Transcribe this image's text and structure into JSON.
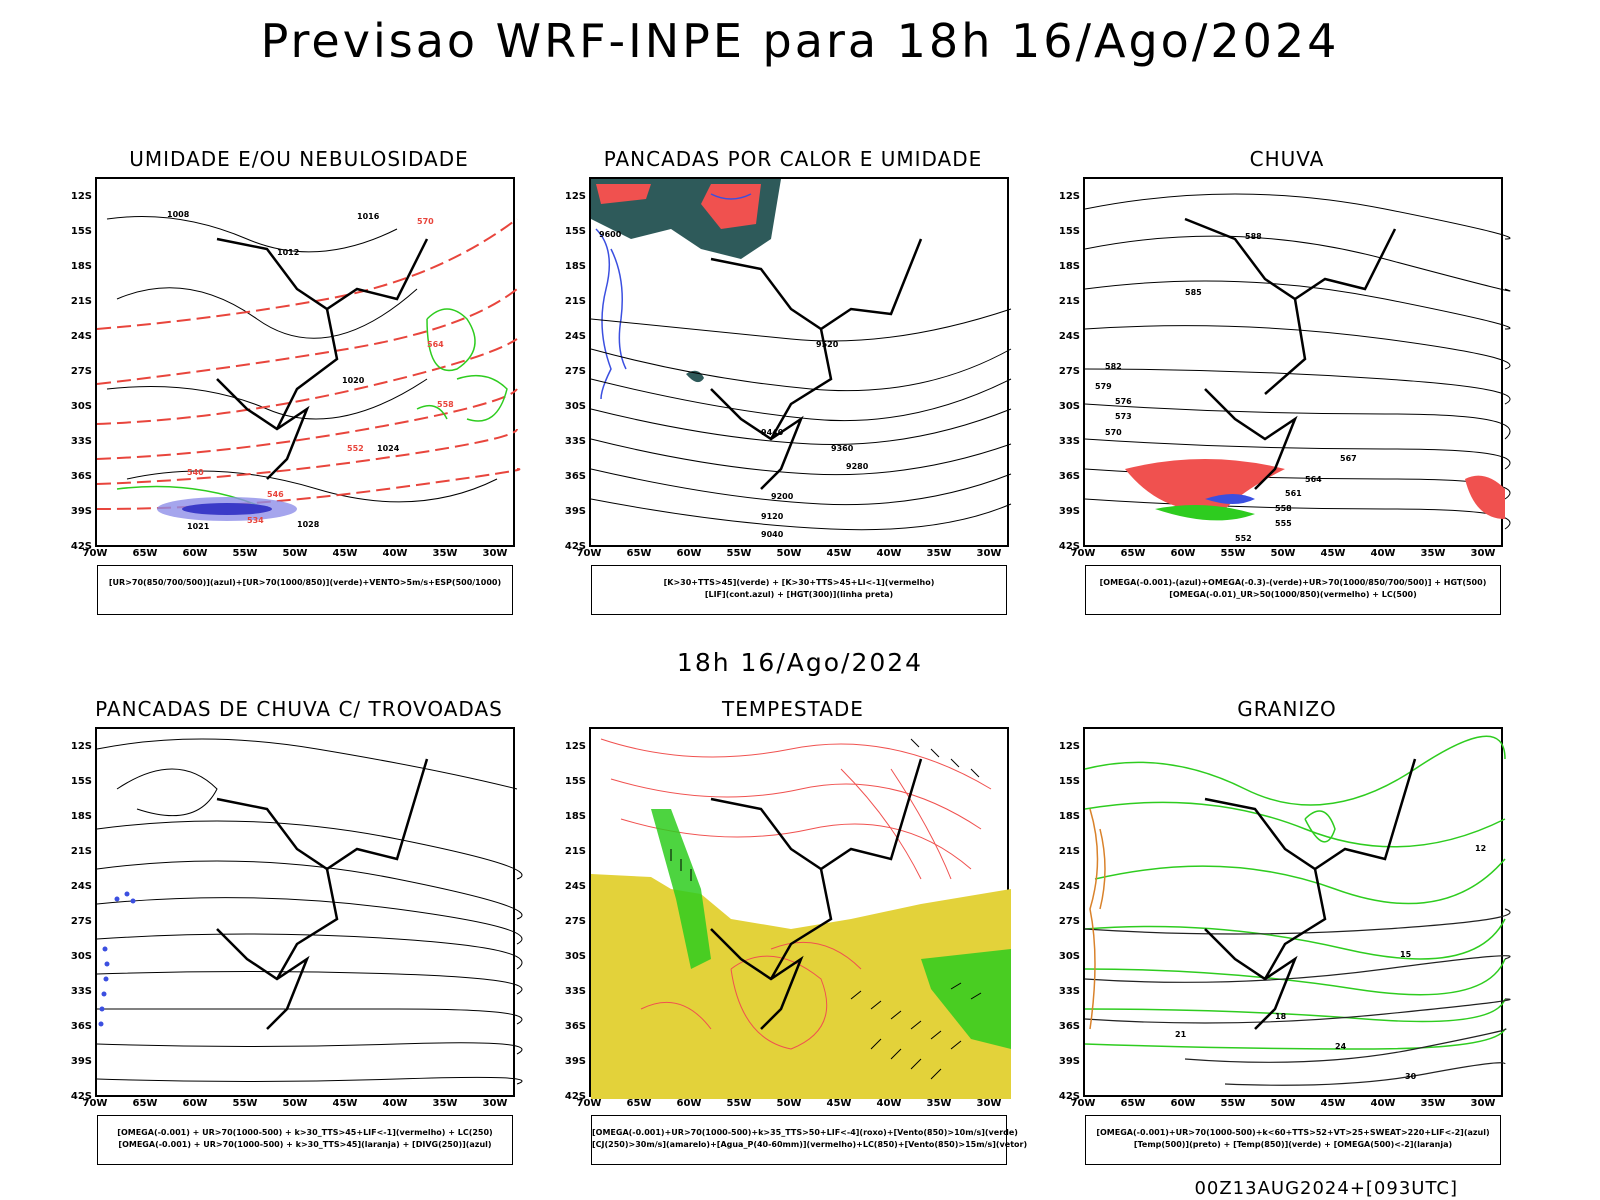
{
  "title": "Previsao WRF-INPE  para 18h 16/Ago/2024",
  "subtitle": "18h 16/Ago/2024",
  "footer": "00Z13AUG2024+[093UTC]",
  "lat_labels": [
    "12S",
    "15S",
    "18S",
    "21S",
    "24S",
    "27S",
    "30S",
    "33S",
    "36S",
    "39S",
    "42S"
  ],
  "lon_labels": [
    "70W",
    "65W",
    "60W",
    "55W",
    "50W",
    "45W",
    "40W",
    "35W",
    "30W"
  ],
  "panels": [
    {
      "title": "UMIDADE E/OU NEBULOSIDADE",
      "legend": [
        "[UR>70(850/700/500)](azul)+[UR>70(1000/850)](verde)+VENTO>5m/s+ESP(500/1000)"
      ],
      "contour_labels": [
        "1008",
        "1016",
        "1012",
        "1020",
        "1024",
        "1028",
        "570",
        "564",
        "558",
        "552",
        "546",
        "540",
        "534",
        "1021"
      ]
    },
    {
      "title": "PANCADAS POR CALOR E UMIDADE",
      "legend": [
        "[K>30+TTS>45](verde) + [K>30+TTS>45+LI<-1](vermelho)",
        "[LIF](cont.azul) + [HGT(300)](linha preta)"
      ],
      "contour_labels": [
        "9600",
        "9520",
        "9440",
        "9360",
        "9280",
        "9200",
        "9120",
        "9040"
      ]
    },
    {
      "title": "CHUVA",
      "legend": [
        "[OMEGA(-0.001)-(azul)+OMEGA(-0.3)-(verde)+UR>70(1000/850/700/500)] + HGT(500)",
        "[OMEGA(-0.01)_UR>50(1000/850)(vermelho) + LC(500)"
      ],
      "contour_labels": [
        "588",
        "585",
        "582",
        "579",
        "576",
        "573",
        "570",
        "567",
        "564",
        "561",
        "558",
        "555",
        "552"
      ]
    },
    {
      "title": "PANCADAS DE CHUVA C/ TROVOADAS",
      "legend": [
        "[OMEGA(-0.001) + UR>70(1000-500) + k>30_TTS>45+LIF<-1](vermelho) + LC(250)",
        "[OMEGA(-0.001) + UR>70(1000-500) + k>30_TTS>45](laranja) + [DIVG(250)](azul)"
      ],
      "contour_labels": []
    },
    {
      "title": "TEMPESTADE",
      "legend": [
        "[OMEGA(-0.001)+UR>70(1000-500)+k>35_TTS>50+LIF<-4](roxo)+[Vento(850)>10m/s](verde)",
        "[CJ(250)>30m/s](amarelo)+[Agua_P(40-60mm)](vermelho)+LC(850)+[Vento(850)>15m/s](vetor)"
      ],
      "contour_labels": []
    },
    {
      "title": "GRANIZO",
      "legend": [
        "[OMEGA(-0.001)+UR>70(1000-500)+k<60+TTS>52+VT>25+SWEAT>220+LIF<-2](azul)",
        "[Temp(500)](preto) + [Temp(850)](verde) + [OMEGA(500)<-2](laranja)"
      ],
      "contour_labels": [
        "12",
        "15",
        "18",
        "21",
        "24",
        "30"
      ]
    }
  ]
}
